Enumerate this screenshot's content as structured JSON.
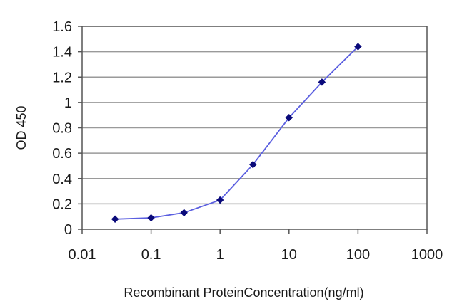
{
  "chart_data": {
    "type": "line",
    "title": "",
    "xlabel": "Recombinant ProteinConcentration(ng/ml)",
    "ylabel": "OD 450",
    "x_scale": "log",
    "xlim": [
      0.01,
      1000
    ],
    "ylim": [
      0,
      1.6
    ],
    "x_ticks": [
      "0.01",
      "0.1",
      "1",
      "10",
      "100",
      "1000"
    ],
    "y_ticks": [
      "0",
      "0.2",
      "0.4",
      "0.6",
      "0.8",
      "1",
      "1.2",
      "1.4",
      "1.6"
    ],
    "grid": "horizontal",
    "series": [
      {
        "x": [
          0.03,
          0.1,
          0.3,
          1,
          3,
          10,
          30,
          100
        ],
        "y": [
          0.08,
          0.09,
          0.13,
          0.23,
          0.51,
          0.88,
          1.16,
          1.44
        ]
      }
    ],
    "colors": {
      "line": "#5b5fe0",
      "marker": "#0a0a7a",
      "grid": "#9a9a9a",
      "axis": "#555555"
    }
  }
}
